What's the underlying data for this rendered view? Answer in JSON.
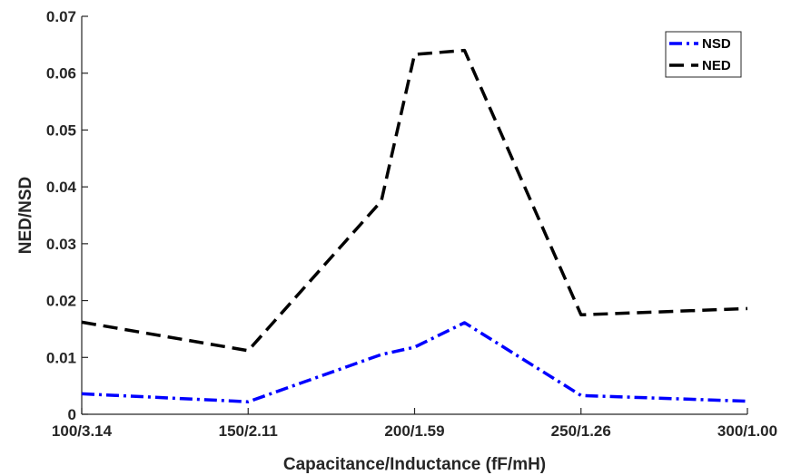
{
  "chart_data": {
    "type": "line",
    "title": "",
    "xlabel": "Capacitance/Inductance (fF/mH)",
    "ylabel": "NED/NSD",
    "x_tick_labels": [
      "100/3.14",
      "150/2.11",
      "200/1.59",
      "250/1.26",
      "300/1.00"
    ],
    "x_tick_values": [
      100,
      150,
      200,
      250,
      300
    ],
    "xlim": [
      100,
      300
    ],
    "y_tick_labels": [
      "0",
      "0.01",
      "0.02",
      "0.03",
      "0.04",
      "0.05",
      "0.06",
      "0.07"
    ],
    "y_tick_values": [
      0,
      0.01,
      0.02,
      0.03,
      0.04,
      0.05,
      0.06,
      0.07
    ],
    "ylim": [
      0,
      0.07
    ],
    "grid": false,
    "legend_position": "top-right",
    "series": [
      {
        "name": "NSD",
        "color": "#0000ff",
        "style": "dash-dot",
        "x": [
          100,
          150,
          190,
          200,
          215,
          250,
          300
        ],
        "y": [
          0.0036,
          0.0022,
          0.0105,
          0.0118,
          0.0161,
          0.0033,
          0.0023
        ]
      },
      {
        "name": "NED",
        "color": "#000000",
        "style": "dashed",
        "x": [
          100,
          150,
          190,
          200,
          215,
          250,
          300
        ],
        "y": [
          0.0162,
          0.0112,
          0.0375,
          0.0633,
          0.064,
          0.0175,
          0.0186
        ]
      }
    ]
  }
}
